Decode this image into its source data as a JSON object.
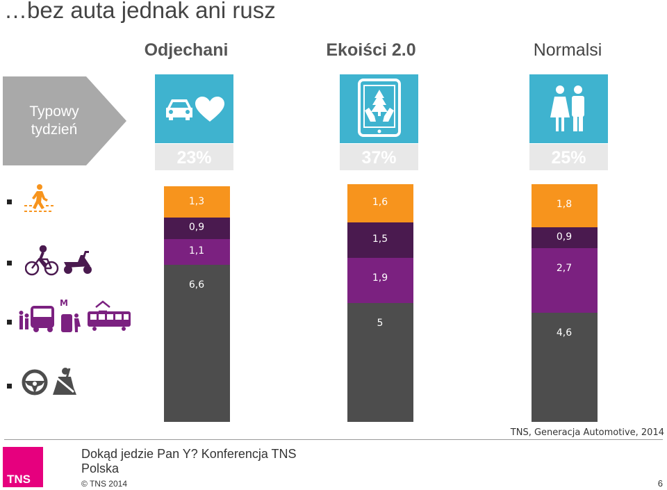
{
  "title": "…bez auta jednak ani rusz",
  "groups": [
    "Odjechani",
    "Ekoiści 2.0",
    "Normalsi"
  ],
  "row_label": "Typowy tydzień",
  "shares": [
    "23%",
    "37%",
    "25%"
  ],
  "colors": {
    "orange": "#f7941d",
    "dark_purple": "#4a1a4f",
    "purple": "#7b2180",
    "gray": "#4d4d4d",
    "tile_blue": "#3fb3cf",
    "arrow_gray": "#a9a9a9",
    "tns_pink": "#e6007e"
  },
  "icons": [
    "car-icon",
    "heart-icon",
    "tablet-tree-icon",
    "woman-man-icon",
    "pedestrian-icon",
    "bicycle-icon",
    "scooter-icon",
    "bus-icon",
    "metro-icon",
    "tram-icon",
    "steering-wheel-icon",
    "seatbelt-icon"
  ],
  "chart_data": {
    "type": "bar",
    "stacked": true,
    "categories": [
      "Odjechani",
      "Ekoiści 2.0",
      "Normalsi"
    ],
    "series": [
      {
        "values": [
          1.3,
          1.6,
          1.8
        ],
        "labels": [
          "1,3",
          "1,6",
          "1,8"
        ],
        "color": "#f7941d",
        "icon": "pedestrian-icon"
      },
      {
        "values": [
          0.9,
          1.5,
          0.9
        ],
        "labels": [
          "0,9",
          "1,5",
          "0,9"
        ],
        "color": "#4a1a4f",
        "icon": "bicycle-scooter-icon"
      },
      {
        "values": [
          1.1,
          1.9,
          2.7
        ],
        "labels": [
          "1,1",
          "1,9",
          "2,7"
        ],
        "color": "#7b2180",
        "icon": "public-transport-icon"
      },
      {
        "values": [
          6.6,
          5,
          4.6
        ],
        "labels": [
          "6,6",
          "5",
          "4,6"
        ],
        "color": "#4d4d4d",
        "icon": "car-driver-passenger-icon"
      }
    ]
  },
  "source": "TNS, Generacja Automotive, 2014",
  "footer": {
    "logo": "TNS",
    "conference": "Dokąd jedzie Pan Y? Konferencja TNS Polska",
    "copyright": "© TNS 2014",
    "page": "6"
  }
}
